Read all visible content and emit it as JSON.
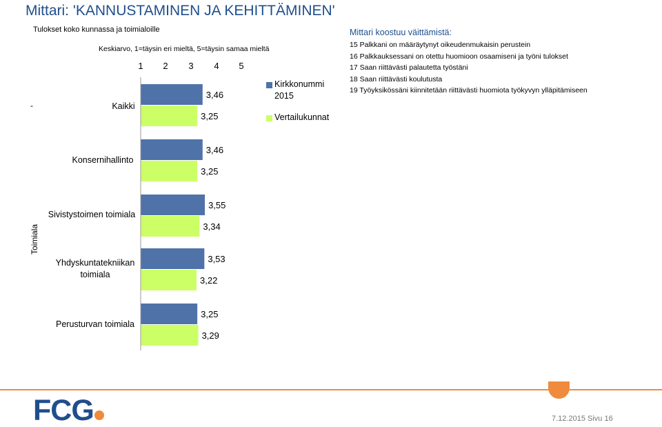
{
  "title": "Mittari: 'KANNUSTAMINEN JA KEHITTÄMINEN'",
  "subtitle": "Tulokset koko kunnassa ja toimialoille",
  "scale_note": "Keskiarvo, 1=täysin eri mieltä, 5=täysin samaa mieltä",
  "dot_marker": "-",
  "colors": {
    "series1": "#4f72a8",
    "series2": "#ccff66",
    "title": "#1f4e8c",
    "accent": "#f08a3c"
  },
  "chart_data": {
    "type": "bar",
    "orientation": "horizontal",
    "xlim": [
      1,
      5
    ],
    "x_ticks": [
      "1",
      "2",
      "3",
      "4",
      "5"
    ],
    "ylabel": "Toimiala",
    "categories": [
      "Kaikki",
      "Konsernihallinto",
      "Sivistystoimen toimiala",
      "Yhdyskuntatekniikan toimiala",
      "Perusturvan toimiala"
    ],
    "series": [
      {
        "name": "Kirkkonummi 2015",
        "values": [
          3.46,
          3.46,
          3.55,
          3.53,
          3.25
        ],
        "labels": [
          "3,46",
          "3,46",
          "3,55",
          "3,53",
          "3,25"
        ]
      },
      {
        "name": "Vertailukunnat",
        "values": [
          3.25,
          3.25,
          3.34,
          3.22,
          3.29
        ],
        "labels": [
          "3,25",
          "3,25",
          "3,34",
          "3,22",
          "3,29"
        ]
      }
    ],
    "legend_position": "right"
  },
  "legend": {
    "series1_line1": "Kirkkonummi",
    "series1_line2": "2015",
    "series2": "Vertailukunnat"
  },
  "statements": {
    "title": "Mittari koostuu väittämistä:",
    "items": [
      "15 Palkkani on määräytynyt oikeudenmukaisin perustein",
      "16 Palkkauksessani on otettu huomioon osaamiseni ja työni tulokset",
      "17 Saan riittävästi palautetta työstäni",
      "18 Saan riittävästi koulutusta",
      "19 Työyksikössäni kiinnitetään riittävästi huomiota työkyvyn ylläpitämiseen"
    ]
  },
  "logo": "FCG",
  "footer": "7.12.2015  Sivu 16"
}
